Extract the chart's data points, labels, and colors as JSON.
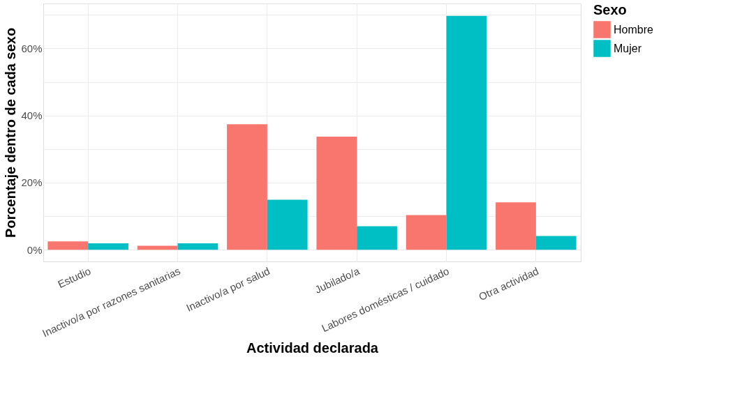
{
  "chart_data": {
    "type": "bar",
    "xlabel": "Actividad declarada",
    "ylabel": "Porcentaje dentro de cada sexo",
    "legend_title": "Sexo",
    "legend": "right",
    "grid": true,
    "categories": [
      "Estudio",
      "Inactivo/a por razones sanitarias",
      "Inactivo/a por salud",
      "Jubilado/a",
      "Labores domésticas / cuidado",
      "Otra actividad"
    ],
    "series": [
      {
        "name": "Hombre",
        "color": "#f8766d",
        "values": [
          2.5,
          1.2,
          37.4,
          33.7,
          10.3,
          14.1
        ]
      },
      {
        "name": "Mujer",
        "color": "#00bfc4",
        "values": [
          1.9,
          1.9,
          14.9,
          7.0,
          69.7,
          4.1
        ]
      }
    ],
    "ylim": [
      -3.5,
      73.4
    ],
    "yticks": [
      {
        "value": 0,
        "label": "0%"
      },
      {
        "value": 10,
        "label": null
      },
      {
        "value": 20,
        "label": "20%"
      },
      {
        "value": 30,
        "label": null
      },
      {
        "value": 40,
        "label": "40%"
      },
      {
        "value": 50,
        "label": null
      },
      {
        "value": 60,
        "label": "60%"
      },
      {
        "value": 70,
        "label": null
      }
    ]
  }
}
